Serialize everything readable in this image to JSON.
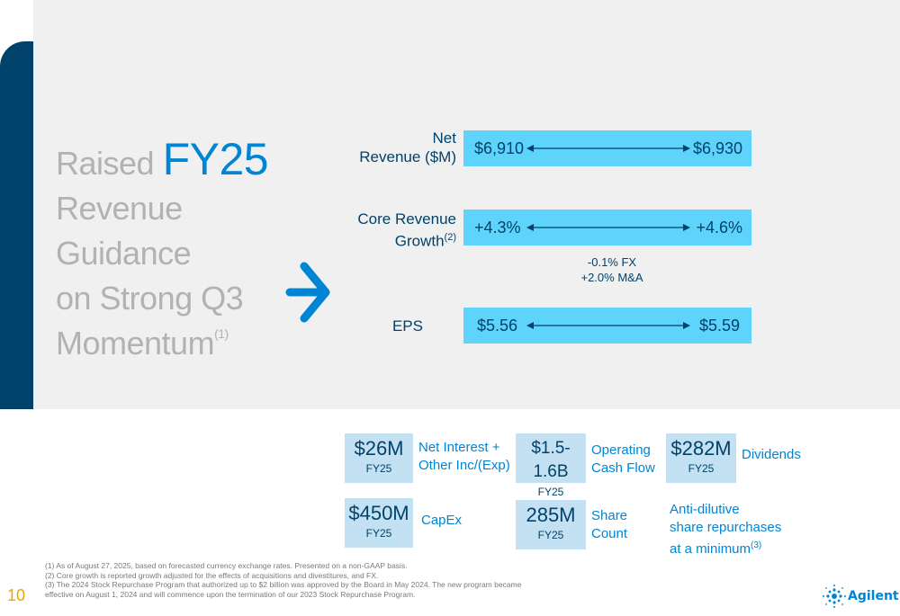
{
  "headline": {
    "line1_prefix": "Raised ",
    "line1_emphasis": "FY25",
    "line2": "Revenue Guidance",
    "line3": "on Strong Q3",
    "line4": "Momentum",
    "line4_superscript": "(1)"
  },
  "guidance": {
    "net_revenue": {
      "label_line1": "Net",
      "label_line2": "Revenue ($M)",
      "low": "$6,910",
      "high": "$6,930"
    },
    "core_growth": {
      "label_line1": "Core Revenue",
      "label_line2": "Growth",
      "label_superscript": "(2)",
      "low": "+4.3%",
      "high": "+4.6%"
    },
    "fx_note": {
      "line1": "-0.1% FX",
      "line2": "+2.0% M&A"
    },
    "eps": {
      "label": "EPS",
      "low": "$5.56",
      "high": "$5.59"
    }
  },
  "kpis": {
    "net_interest": {
      "value": "$26M",
      "period": "FY25",
      "desc_line1": "Net Interest +",
      "desc_line2": "Other Inc/(Exp)"
    },
    "operating_cash_flow": {
      "value": "$1.5-1.6B",
      "period": "FY25",
      "desc_line1": "Operating",
      "desc_line2": "Cash Flow"
    },
    "dividends": {
      "value": "$282M",
      "period": "FY25",
      "desc": "Dividends"
    },
    "capex": {
      "value": "$450M",
      "period": "FY25",
      "desc": "CapEx"
    },
    "share_count": {
      "value": "285M",
      "period": "FY25",
      "desc_line1": "Share",
      "desc_line2": "Count"
    },
    "repurchases": {
      "desc_line1": "Anti-dilutive",
      "desc_line2": "share repurchases",
      "desc_line3": "at a minimum",
      "desc_superscript": "(3)"
    }
  },
  "footnotes": [
    "(1)  As of August 27, 2025, based on forecasted currency exchange rates. Presented on a non-GAAP basis.",
    "(2)  Core growth is reported growth adjusted for the effects of acquisitions and divestitures, and FX.",
    "(3)  The 2024 Stock Repurchase Program that authorized up to $2 billion was approved by the Board in May 2024. The new program became",
    "effective on August 1, 2024 and will commence upon the termination of our 2023 Stock Repurchase Program."
  ],
  "page_number": "10",
  "brand": {
    "name": "Agilent"
  },
  "colors": {
    "navy": "#00426a",
    "accent_blue": "#0085d5",
    "range_bar": "#5ed4fc",
    "kpi_box": "#c4e0f3",
    "headline_gray": "#b2b2b2",
    "page_number": "#f0a400"
  },
  "icons": [
    "right-arrow-icon",
    "double-arrow-icon",
    "agilent-spark-icon"
  ]
}
